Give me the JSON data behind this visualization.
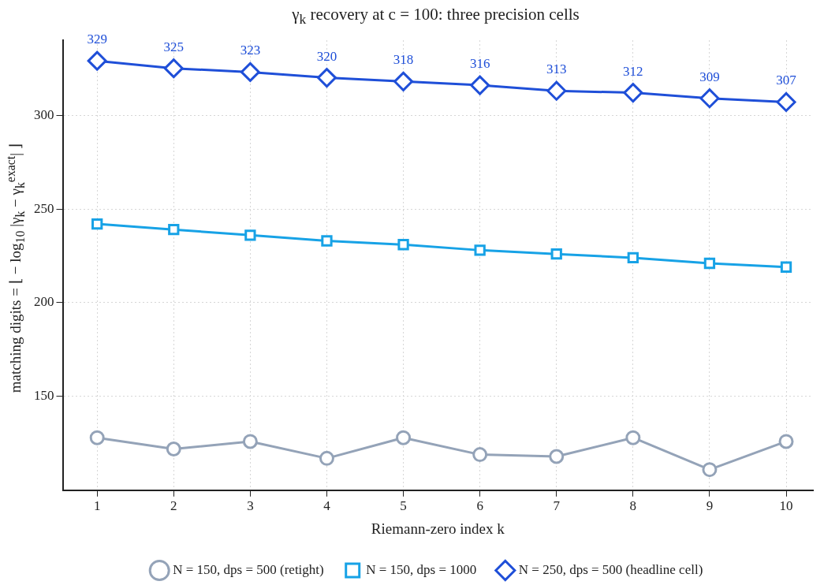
{
  "chart_data": {
    "type": "line",
    "title": "γ$_{k}$ recovery at c = 100:  three precision cells",
    "xlabel": "Riemann-zero index k",
    "ylabel": "matching digits = ⌊ − log$_{10}$ |γ$_{k}$ − γ$_{k}$$^{exact}$| ⌋",
    "x": [
      1,
      2,
      3,
      4,
      5,
      6,
      7,
      8,
      9,
      10
    ],
    "xlim": [
      0.55,
      10.35
    ],
    "xticks": [
      1,
      2,
      3,
      4,
      5,
      6,
      7,
      8,
      9,
      10
    ],
    "ylim": [
      100,
      340
    ],
    "yticks": [
      150,
      200,
      250,
      300
    ],
    "grid": true,
    "legend": "bottom",
    "series": [
      {
        "name": "N = 150, dps = 500 (retight)",
        "color": "#94a3b8",
        "marker": "circle",
        "values": [
          128,
          122,
          126,
          117,
          128,
          119,
          118,
          128,
          111,
          126
        ]
      },
      {
        "name": "N = 150, dps = 1000",
        "color": "#17a2e6",
        "marker": "square",
        "values": [
          242,
          239,
          236,
          233,
          231,
          228,
          226,
          224,
          221,
          219
        ]
      },
      {
        "name": "N = 250, dps = 500 (headline cell)",
        "color": "#1f4fd8",
        "marker": "diamond",
        "values": [
          329,
          325,
          323,
          320,
          318,
          316,
          313,
          312,
          309,
          307
        ],
        "value_labels": [
          "329",
          "325",
          "323",
          "320",
          "318",
          "316",
          "313",
          "312",
          "309",
          "307"
        ]
      }
    ]
  }
}
